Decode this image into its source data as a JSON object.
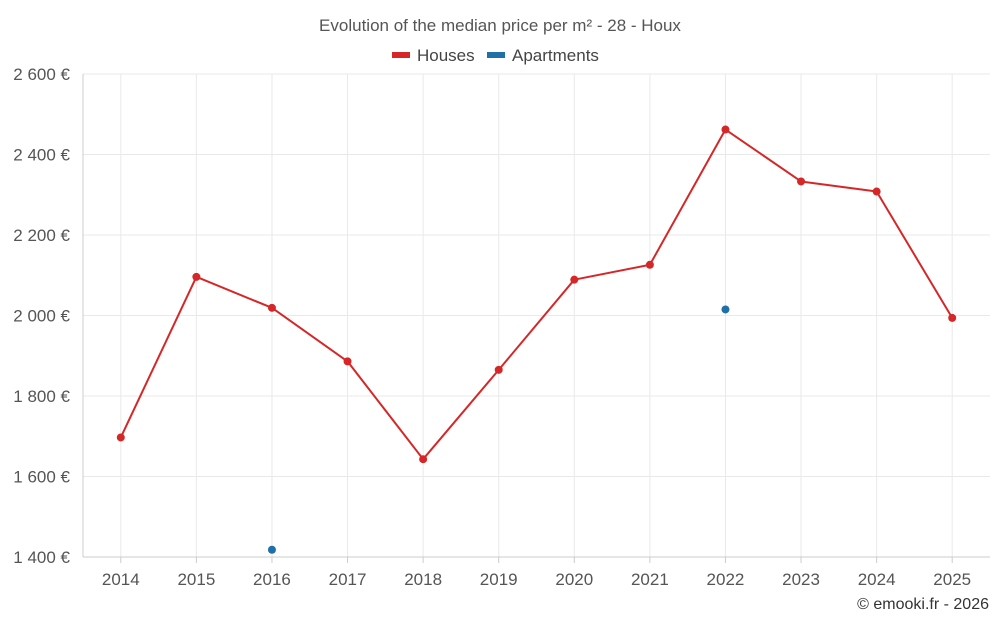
{
  "chart_data": {
    "type": "line",
    "title": "Evolution of the median price per m² - 28 - Houx",
    "categories": [
      "2014",
      "2015",
      "2016",
      "2017",
      "2018",
      "2019",
      "2020",
      "2021",
      "2022",
      "2023",
      "2024",
      "2025"
    ],
    "ylim": [
      1400,
      2600
    ],
    "yticks": [
      1400,
      1600,
      1800,
      2000,
      2200,
      2400,
      2600
    ],
    "ytick_labels": [
      "1 400 €",
      "1 600 €",
      "1 800 €",
      "2 000 €",
      "2 200 €",
      "2 400 €",
      "2 600 €"
    ],
    "grid": true,
    "legend_position": "top-center",
    "series": [
      {
        "name": "Houses",
        "color": "#d62728",
        "values": [
          1697,
          2096,
          2019,
          1886,
          1643,
          1865,
          2089,
          2126,
          2462,
          2333,
          2308,
          1994
        ]
      },
      {
        "name": "Apartments",
        "color": "#1f6fa8",
        "values": [
          null,
          null,
          1418,
          null,
          null,
          null,
          null,
          null,
          2015,
          null,
          null,
          null
        ]
      }
    ]
  },
  "credit": "© emooki.fr - 2026"
}
